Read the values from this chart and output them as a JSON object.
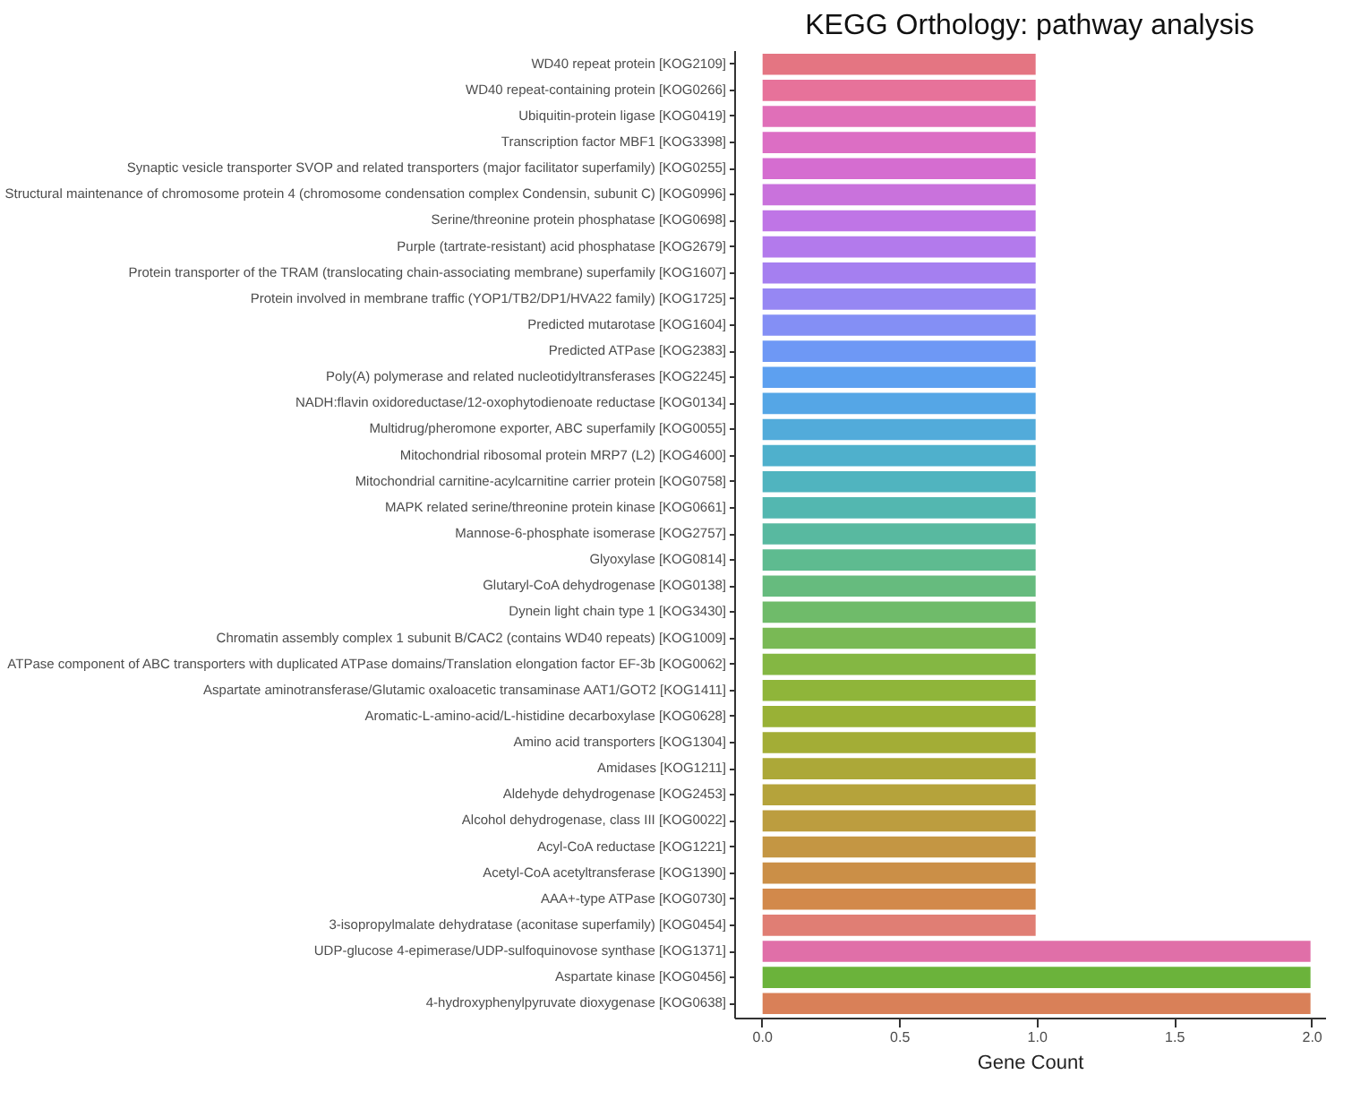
{
  "chart_data": {
    "type": "bar",
    "orientation": "horizontal",
    "title": "KEGG Orthology: pathway analysis",
    "xlabel": "Gene Count",
    "categories": [
      "WD40 repeat protein [KOG2109]",
      "WD40 repeat-containing protein [KOG0266]",
      "Ubiquitin-protein ligase [KOG0419]",
      "Transcription factor MBF1 [KOG3398]",
      "Synaptic vesicle transporter SVOP and related transporters (major facilitator superfamily) [KOG0255]",
      "Structural maintenance of chromosome protein 4 (chromosome condensation complex Condensin, subunit C) [KOG0996]",
      "Serine/threonine protein phosphatase [KOG0698]",
      "Purple (tartrate-resistant) acid phosphatase [KOG2679]",
      "Protein transporter of the TRAM (translocating chain-associating membrane) superfamily [KOG1607]",
      "Protein involved in membrane traffic (YOP1/TB2/DP1/HVA22 family) [KOG1725]",
      "Predicted mutarotase [KOG1604]",
      "Predicted ATPase [KOG2383]",
      "Poly(A) polymerase and related nucleotidyltransferases [KOG2245]",
      "NADH:flavin oxidoreductase/12-oxophytodienoate reductase [KOG0134]",
      "Multidrug/pheromone exporter, ABC superfamily [KOG0055]",
      "Mitochondrial ribosomal protein MRP7 (L2) [KOG4600]",
      "Mitochondrial carnitine-acylcarnitine carrier protein [KOG0758]",
      "MAPK related serine/threonine protein kinase [KOG0661]",
      "Mannose-6-phosphate isomerase [KOG2757]",
      "Glyoxylase [KOG0814]",
      "Glutaryl-CoA dehydrogenase [KOG0138]",
      "Dynein light chain type 1 [KOG3430]",
      "Chromatin assembly complex 1 subunit B/CAC2 (contains WD40 repeats) [KOG1009]",
      "ATPase component of ABC transporters with duplicated ATPase domains/Translation elongation factor EF-3b [KOG0062]",
      "Aspartate aminotransferase/Glutamic oxaloacetic transaminase AAT1/GOT2 [KOG1411]",
      "Aromatic-L-amino-acid/L-histidine decarboxylase [KOG0628]",
      "Amino acid transporters [KOG1304]",
      "Amidases [KOG1211]",
      "Aldehyde dehydrogenase [KOG2453]",
      "Alcohol dehydrogenase, class III [KOG0022]",
      "Acyl-CoA reductase [KOG1221]",
      "Acetyl-CoA acetyltransferase [KOG1390]",
      "AAA+-type ATPase [KOG0730]",
      "3-isopropylmalate dehydratase (aconitase superfamily) [KOG0454]",
      "UDP-glucose 4-epimerase/UDP-sulfoquinovose synthase [KOG1371]",
      "Aspartate kinase [KOG0456]",
      "4-hydroxyphenylpyruvate dioxygenase [KOG0638]"
    ],
    "values": [
      1,
      1,
      1,
      1,
      1,
      1,
      1,
      1,
      1,
      1,
      1,
      1,
      1,
      1,
      1,
      1,
      1,
      1,
      1,
      1,
      1,
      1,
      1,
      1,
      1,
      1,
      1,
      1,
      1,
      1,
      1,
      1,
      1,
      1,
      2,
      2,
      2
    ],
    "colors": [
      "#e47582",
      "#e7729a",
      "#e06fb8",
      "#dc6ec4",
      "#d56dd0",
      "#c972dc",
      "#bf75e6",
      "#b37aec",
      "#a57ff0",
      "#9687f3",
      "#848ff5",
      "#6e98f5",
      "#5da0f0",
      "#55a6e6",
      "#52abda",
      "#4fb0cc",
      "#50b4bf",
      "#53b7b0",
      "#58b9a0",
      "#5ebb90",
      "#66bb7e",
      "#6fbb6a",
      "#79b955",
      "#84b743",
      "#8fb53a",
      "#99b136",
      "#a3ad36",
      "#aca838",
      "#b5a33b",
      "#bc9d3f",
      "#c49643",
      "#cb8f47",
      "#d2894b",
      "#e07e74",
      "#e06fa8",
      "#6bb33b",
      "#d98058"
    ],
    "xlim": [
      -0.1,
      2.05
    ],
    "xticks": [
      {
        "value": 0,
        "label": "0.0"
      },
      {
        "value": 0.5,
        "label": "0.5"
      },
      {
        "value": 1,
        "label": "1.0"
      },
      {
        "value": 1.5,
        "label": "1.5"
      },
      {
        "value": 2,
        "label": "2.0"
      }
    ]
  }
}
